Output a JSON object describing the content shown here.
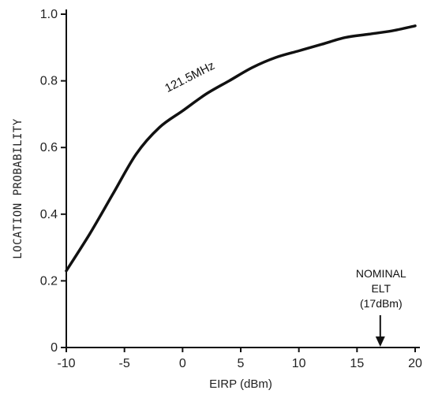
{
  "chart_data": {
    "type": "line",
    "title": "",
    "xlabel": "EIRP (dBm)",
    "ylabel": "LOCATION PROBABILITY",
    "xlim": [
      -10,
      20
    ],
    "ylim": [
      0,
      1.0
    ],
    "x_ticks": [
      -10,
      -5,
      0,
      5,
      10,
      15,
      20
    ],
    "x_tick_labels": [
      "-10",
      "-5",
      "0",
      "5",
      "10",
      "15",
      "20"
    ],
    "y_ticks": [
      0,
      0.2,
      0.4,
      0.6,
      0.8,
      1.0
    ],
    "y_tick_labels": [
      "0",
      "0.2",
      "0.4",
      "0.6",
      "0.8",
      "1.0"
    ],
    "grid": false,
    "series": [
      {
        "name": "121.5MHz",
        "x": [
          -10,
          -8,
          -6,
          -4,
          -2,
          0,
          2,
          4,
          6,
          8,
          10,
          12,
          14,
          16,
          18,
          20
        ],
        "y": [
          0.23,
          0.34,
          0.46,
          0.58,
          0.66,
          0.71,
          0.76,
          0.8,
          0.84,
          0.87,
          0.89,
          0.91,
          0.93,
          0.94,
          0.95,
          0.965
        ]
      }
    ],
    "annotations": [
      {
        "lines": [
          "NOMINAL",
          "ELT",
          "(17dBm)"
        ],
        "x": 17,
        "arrow": "down"
      }
    ]
  }
}
